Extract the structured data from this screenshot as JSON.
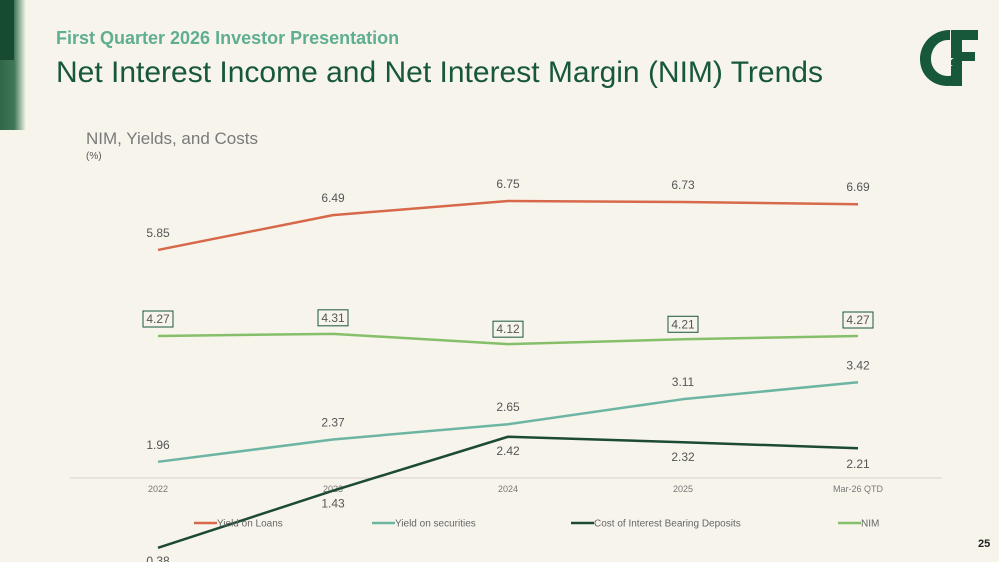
{
  "header": {
    "kicker": "First Quarter 2026 Investor Presentation",
    "title": "Net Interest Income and Net Interest Margin (NIM) Trends",
    "logo_text": "C&F"
  },
  "page_number": "25",
  "colors": {
    "brand_green": "#17573a",
    "kicker_green": "#5fae90"
  },
  "chart_data": {
    "type": "line",
    "title": "NIM, Yields, and Costs",
    "unit": "(%)",
    "categories": [
      "2022",
      "2023",
      "2024",
      "2025",
      "Mar-26 QTD"
    ],
    "ylim": [
      0,
      7.5
    ],
    "grid": false,
    "legend_position": "bottom",
    "series": [
      {
        "name": "Yield on Loans",
        "color": "#d7694a",
        "values": [
          5.85,
          6.49,
          6.75,
          6.73,
          6.69
        ],
        "labels": [
          "5.85",
          "6.49",
          "6.75",
          "6.73",
          "6.69"
        ],
        "boxed": false
      },
      {
        "name": "Yield on securities",
        "color": "#6db5a3",
        "values": [
          1.96,
          2.37,
          2.65,
          3.11,
          3.42
        ],
        "labels": [
          "1.96",
          "2.37",
          "2.65",
          "3.11",
          "3.42"
        ],
        "boxed": false
      },
      {
        "name": "Cost of Interest Bearing Deposits",
        "color": "#1c4a33",
        "values": [
          0.38,
          1.43,
          2.42,
          2.32,
          2.21
        ],
        "labels": [
          "0.38",
          "1.43",
          "2.42",
          "2.32",
          "2.21"
        ],
        "boxed": false
      },
      {
        "name": "NIM",
        "color": "#86bf6a",
        "values": [
          4.27,
          4.31,
          4.12,
          4.21,
          4.27
        ],
        "labels": [
          "4.27",
          "4.31",
          "4.12",
          "4.21",
          "4.27"
        ],
        "boxed": true
      }
    ]
  }
}
